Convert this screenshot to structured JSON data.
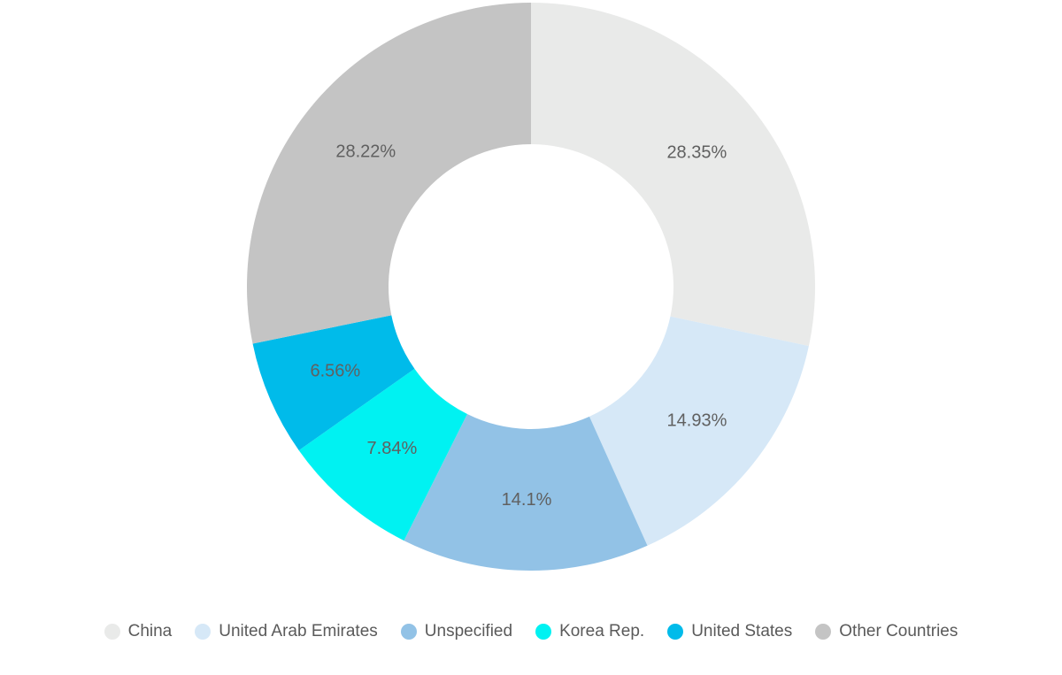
{
  "chart_data": {
    "type": "pie",
    "subtype": "donut",
    "title": "",
    "legend_position": "bottom",
    "direction": "clockwise",
    "start_angle_deg": 0,
    "inner_radius_ratio": 0.5,
    "background_color": "#ffffff",
    "label_color": "#606060",
    "legend_text_color": "#5a5a5a",
    "series": [
      {
        "name": "China",
        "value": 28.35,
        "label": "28.35%",
        "color": "#e9eae9"
      },
      {
        "name": "United Arab Emirates",
        "value": 14.93,
        "label": "14.93%",
        "color": "#d6e8f7"
      },
      {
        "name": "Unspecified",
        "value": 14.1,
        "label": "14.1%",
        "color": "#92c2e6"
      },
      {
        "name": "Korea Rep.",
        "value": 7.84,
        "label": "7.84%",
        "color": "#00f2f2"
      },
      {
        "name": "United States",
        "value": 6.56,
        "label": "6.56%",
        "color": "#00bbea"
      },
      {
        "name": "Other Countries",
        "value": 28.22,
        "label": "28.22%",
        "color": "#c4c4c4"
      }
    ]
  }
}
